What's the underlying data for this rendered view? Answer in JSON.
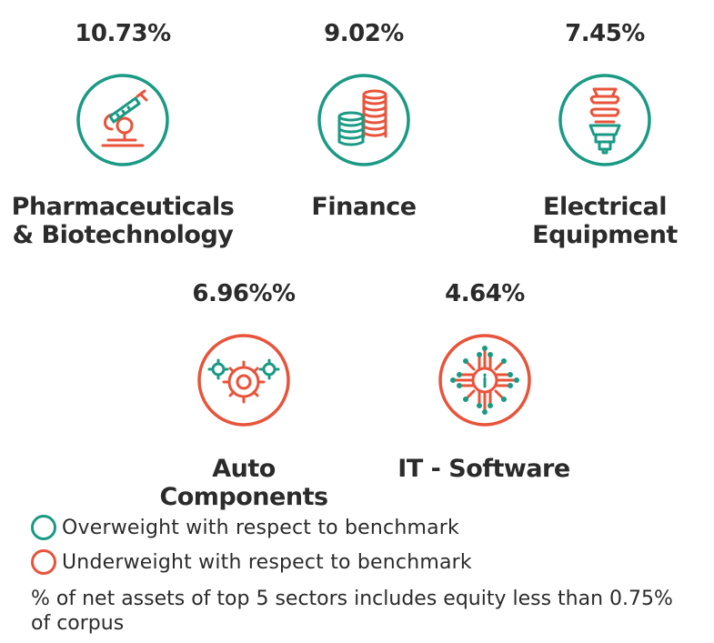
{
  "colors": {
    "overweight": "#1a9a84",
    "underweight": "#e8533a",
    "text": "#2b2b2b"
  },
  "sectors": [
    {
      "percent": "10.73%",
      "label_line1": "Pharmaceuticals",
      "label_line2": "& Biotechnology",
      "icon": "microscope-icon",
      "status": "overweight"
    },
    {
      "percent": "9.02%",
      "label_line1": "Finance",
      "label_line2": "",
      "icon": "coins-icon",
      "status": "overweight"
    },
    {
      "percent": "7.45%",
      "label_line1": "Electrical",
      "label_line2": "Equipment",
      "icon": "lightbulb-icon",
      "status": "overweight"
    },
    {
      "percent": "6.96%%",
      "label_line1": "Auto",
      "label_line2": "Components",
      "icon": "gears-icon",
      "status": "underweight"
    },
    {
      "percent": "4.64%",
      "label_line1": "IT - Software",
      "label_line2": "",
      "icon": "circuit-icon",
      "status": "underweight"
    }
  ],
  "legend": {
    "overweight": "Overweight with respect to benchmark",
    "underweight": "Underweight with respect to benchmark"
  },
  "footnote": "% of net assets of top 5 sectors includes equity less than 0.75% of corpus"
}
